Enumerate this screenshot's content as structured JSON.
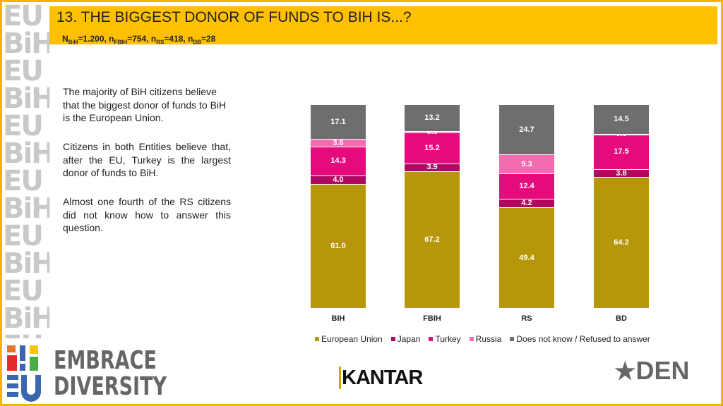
{
  "header": {
    "title": "13. THE BIGGEST DONOR OF FUNDS TO BIH IS...?",
    "sample": [
      {
        "n": "N",
        "sub": "BiH",
        "val": "=1.200, "
      },
      {
        "n": "n",
        "sub": "FBIH",
        "val": "=754, "
      },
      {
        "n": "n",
        "sub": "RS",
        "val": "=418, "
      },
      {
        "n": "n",
        "sub": "DB",
        "val": "=28"
      }
    ]
  },
  "text": {
    "p1": "The majority of BiH citizens believe that the biggest donor of funds to BiH is the European Union.",
    "p2": "Citizens in both Entities believe that, after the EU, Turkey is the largest donor of funds to BiH.",
    "p3": "Almost one fourth of the RS citizens did not know how to answer this question."
  },
  "chart_data": {
    "type": "bar",
    "stacked": true,
    "categories": [
      "BIH",
      "FBIH",
      "RS",
      "BD"
    ],
    "ylim": [
      0,
      100
    ],
    "series": [
      {
        "name": "European Union",
        "color": "#b8960a",
        "values": [
          61.0,
          67.2,
          49.4,
          64.2
        ]
      },
      {
        "name": "Japan",
        "color": "#b0085e",
        "values": [
          4.0,
          3.9,
          4.2,
          3.8
        ]
      },
      {
        "name": "Turkey",
        "color": "#e50b7d",
        "values": [
          14.3,
          15.2,
          12.4,
          17.5
        ]
      },
      {
        "name": "Russia",
        "color": "#f46bb0",
        "values": [
          3.6,
          0.5,
          9.3,
          0.0
        ]
      },
      {
        "name": "Does not know / Refused to answer",
        "color": "#6e6e6e",
        "values": [
          17.1,
          13.2,
          24.7,
          14.5
        ]
      }
    ],
    "legend": "bottom"
  },
  "logos": {
    "embrace": "EMBRACE DIVERSITY",
    "kantar": "KANTAR",
    "den": "DEN"
  },
  "strip": "EU BiH"
}
